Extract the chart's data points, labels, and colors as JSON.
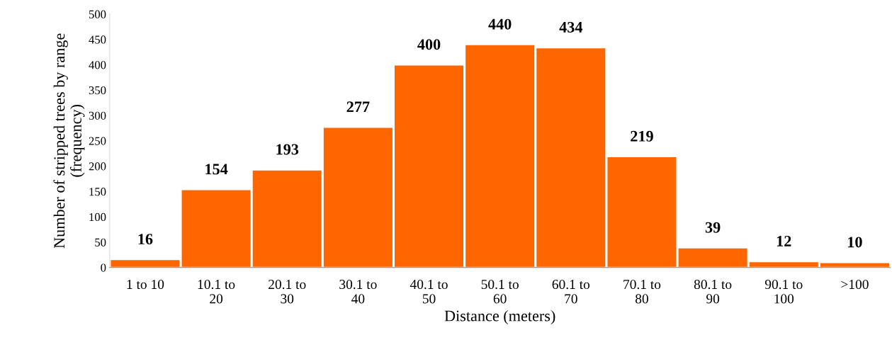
{
  "chart_data": {
    "type": "bar",
    "xlabel": "Distance (meters)",
    "ylabel": "Number of stripped trees by range\n(frequency)",
    "categories": [
      "1 to 10",
      "10.1 to\n20",
      "20.1 to\n30",
      "30.1 to\n40",
      "40.1 to\n50",
      "50.1 to\n60",
      "60.1 to\n70",
      "70.1 to\n80",
      "80.1 to\n90",
      "90.1 to\n100",
      ">100"
    ],
    "values": [
      16,
      154,
      193,
      277,
      400,
      440,
      434,
      219,
      39,
      12,
      10
    ],
    "color": "#ff6600",
    "ylim": [
      0,
      500
    ],
    "yticks": [
      0,
      50,
      100,
      150,
      200,
      250,
      300,
      350,
      400,
      450,
      500
    ],
    "data_labels": true,
    "grid": false
  }
}
